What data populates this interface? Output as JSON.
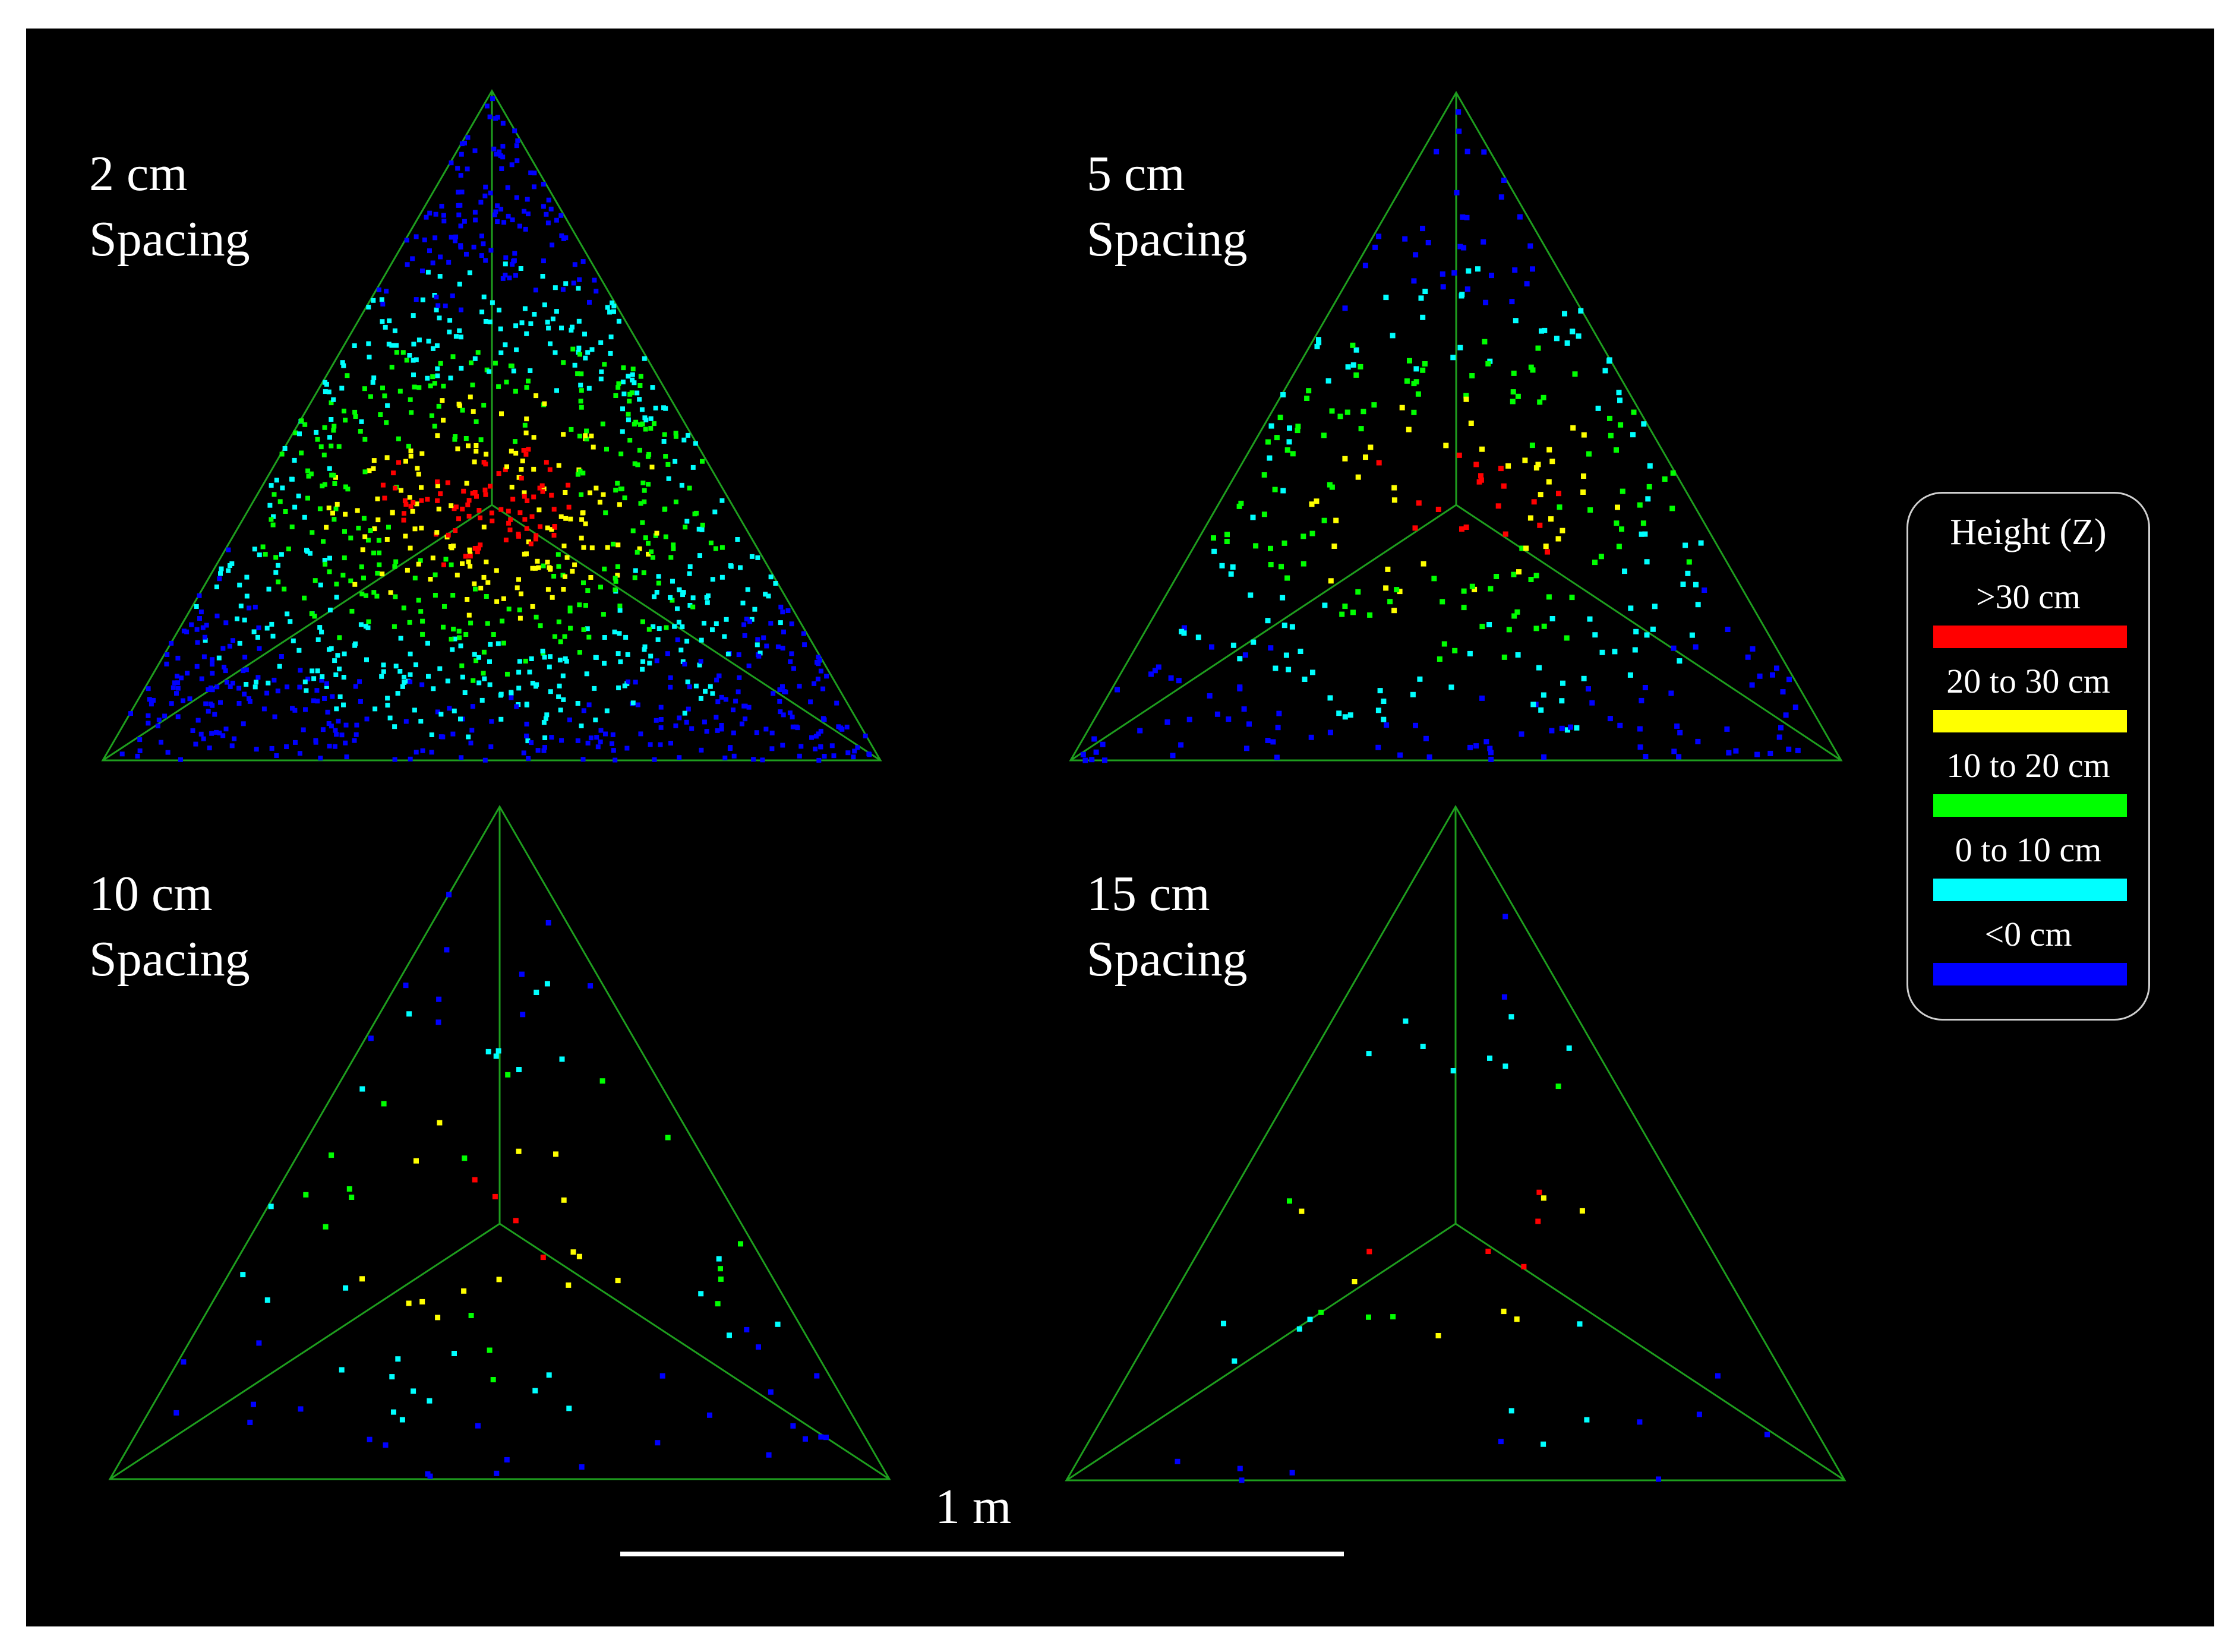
{
  "panels": [
    {
      "label_line1": "2 cm",
      "label_line2": "Spacing",
      "dots": 1400
    },
    {
      "label_line1": "5 cm",
      "label_line2": "Spacing",
      "dots": 420
    },
    {
      "label_line1": "10 cm",
      "label_line2": "Spacing",
      "dots": 100
    },
    {
      "label_line1": "15 cm",
      "label_line2": "Spacing",
      "dots": 45
    }
  ],
  "legend": {
    "title": "Height (Z)",
    "items": [
      {
        "label": ">30 cm",
        "color": "#ff0000"
      },
      {
        "label": "20 to 30 cm",
        "color": "#ffff00"
      },
      {
        "label": "10 to 20 cm",
        "color": "#00ff00"
      },
      {
        "label": "0 to 10 cm",
        "color": "#00ffff"
      },
      {
        "label": "<0 cm",
        "color": "#0000ff"
      }
    ]
  },
  "scale": {
    "label": "1 m"
  },
  "colors": {
    "background": "#000000",
    "outline": "#1e9e1e"
  }
}
